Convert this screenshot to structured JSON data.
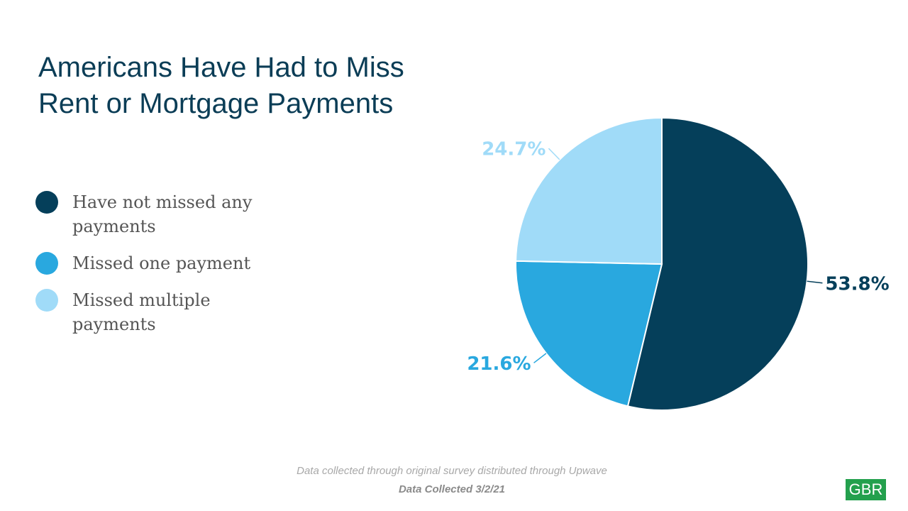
{
  "chart_data": {
    "type": "pie",
    "title": "Americans Have Had to Miss Rent or Mortgage Payments",
    "title_lines": [
      "Americans Have Had to Miss",
      "Rent or Mortgage Payments"
    ],
    "legend_placement": "left",
    "slices": [
      {
        "name": "Have not missed any payments",
        "value": 53.8,
        "label": "53.8%",
        "color": "#053f5a"
      },
      {
        "name": "Missed one payment",
        "value": 21.6,
        "label": "21.6%",
        "color": "#29a8df"
      },
      {
        "name": "Missed multiple payments",
        "value": 24.7,
        "label": "24.7%",
        "color": "#a0dbf8"
      }
    ]
  },
  "footer": {
    "source": "Data collected through original survey distributed through Upwave",
    "date": "Data Collected 3/2/21"
  },
  "logo": "GBR"
}
